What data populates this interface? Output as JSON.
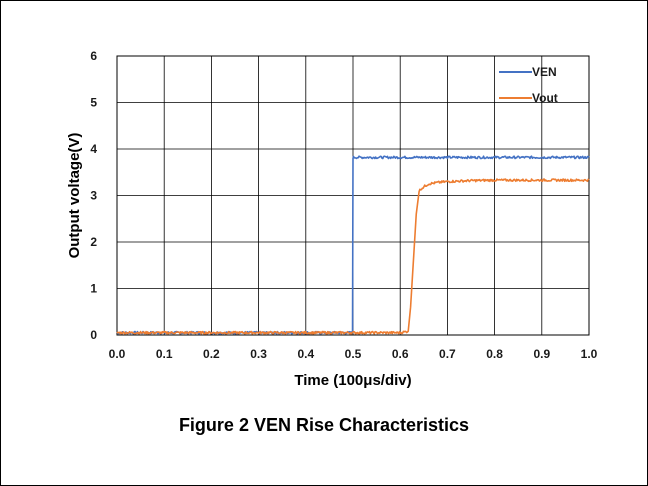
{
  "caption": "Figure 2 VEN Rise Characteristics",
  "chart_data": {
    "type": "line",
    "title": "",
    "xlabel": "Time (100μs/div)",
    "ylabel": "Output voltage(V)",
    "xlim": [
      0,
      1.0
    ],
    "ylim": [
      0,
      6
    ],
    "x_ticks": [
      "0.0",
      "0.1",
      "0.2",
      "0.3",
      "0.4",
      "0.5",
      "0.6",
      "0.7",
      "0.8",
      "0.9",
      "1.0"
    ],
    "y_ticks": [
      "0",
      "1",
      "2",
      "3",
      "4",
      "5",
      "6"
    ],
    "grid": true,
    "legend_position": "top-right",
    "series": [
      {
        "name": "VEN",
        "color": "#4472C4",
        "x": [
          0.0,
          0.1,
          0.2,
          0.3,
          0.4,
          0.499,
          0.5,
          0.501,
          0.6,
          0.7,
          0.8,
          0.9,
          1.0
        ],
        "y": [
          0.05,
          0.05,
          0.05,
          0.05,
          0.05,
          0.05,
          3.82,
          3.82,
          3.82,
          3.82,
          3.82,
          3.82,
          3.82
        ]
      },
      {
        "name": "Vout",
        "color": "#ED7D31",
        "x": [
          0.0,
          0.1,
          0.2,
          0.3,
          0.4,
          0.5,
          0.6,
          0.617,
          0.622,
          0.628,
          0.634,
          0.64,
          0.645,
          0.652,
          0.66,
          0.68,
          0.7,
          0.75,
          0.8,
          0.9,
          1.0
        ],
        "y": [
          0.05,
          0.05,
          0.05,
          0.05,
          0.05,
          0.05,
          0.05,
          0.08,
          0.6,
          1.6,
          2.6,
          3.1,
          3.15,
          3.2,
          3.25,
          3.28,
          3.3,
          3.32,
          3.33,
          3.33,
          3.33
        ]
      }
    ]
  }
}
